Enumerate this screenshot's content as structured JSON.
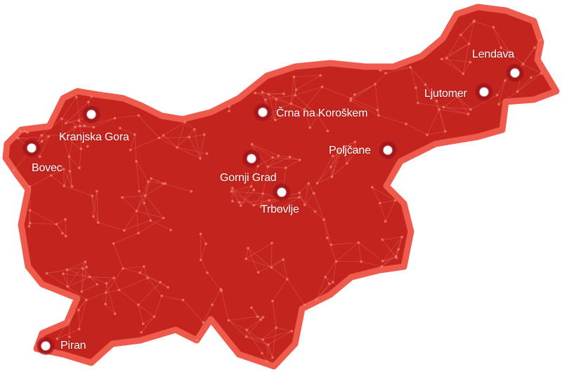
{
  "map": {
    "region": "Slovenia",
    "colors": {
      "fill": "#c4241e",
      "border": "#ee5a4c",
      "network": "#f07a6a",
      "marker": "#ffffff"
    },
    "cities": [
      {
        "name": "Lendava"
      },
      {
        "name": "Ljutomer"
      },
      {
        "name": "Črna na Koroškem"
      },
      {
        "name": "Poljčane"
      },
      {
        "name": "Kranjska Gora"
      },
      {
        "name": "Bovec"
      },
      {
        "name": "Gornji Grad"
      },
      {
        "name": "Trbovlje"
      },
      {
        "name": "Piran"
      }
    ]
  }
}
